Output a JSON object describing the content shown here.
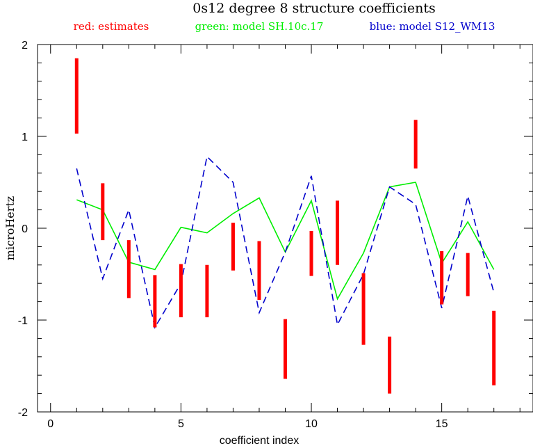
{
  "chart_data": {
    "type": "line",
    "title": "0s12 degree 8 structure coefficients",
    "legend": [
      {
        "label": "red: estimates",
        "color": "#ff0000"
      },
      {
        "label": "green: model SH.10c.17",
        "color": "#00ee00"
      },
      {
        "label": "blue: model S12_WM13",
        "color": "#0000cc"
      }
    ],
    "xlabel": "coefficient index",
    "ylabel": "microHertz",
    "xlim": [
      -0.5,
      18.5
    ],
    "ylim": [
      -2,
      2
    ],
    "x_ticks": [
      0,
      5,
      10,
      15
    ],
    "y_ticks": [
      -2,
      -1,
      0,
      1,
      2
    ],
    "x_tick_labels": [
      "0",
      "5",
      "10",
      "15"
    ],
    "y_tick_labels": [
      "-2",
      "-1",
      "0",
      "1",
      "2"
    ],
    "x_minor_step": 1,
    "y_minor_step": 0.2,
    "grid": false,
    "estimates": {
      "name": "red: estimates",
      "color": "#ff0000",
      "x": [
        1,
        2,
        3,
        4,
        5,
        6,
        7,
        8,
        9,
        10,
        11,
        12,
        13,
        14,
        15,
        16,
        17
      ],
      "low": [
        1.03,
        -0.13,
        -0.76,
        -1.08,
        -0.97,
        -0.97,
        -0.46,
        -0.78,
        -1.64,
        -0.52,
        -0.4,
        -1.27,
        -1.8,
        0.65,
        -0.83,
        -0.74,
        -1.71
      ],
      "high": [
        1.85,
        0.49,
        -0.13,
        -0.51,
        -0.39,
        -0.4,
        0.06,
        -0.14,
        -0.99,
        -0.03,
        0.3,
        -0.49,
        -1.18,
        1.18,
        -0.25,
        -0.27,
        -0.9
      ]
    },
    "series": [
      {
        "name": "green: model SH.10c.17",
        "color": "#00ee00",
        "style": "solid",
        "x": [
          1,
          2,
          3,
          4,
          5,
          6,
          7,
          8,
          9,
          10,
          11,
          12,
          13,
          14,
          15,
          16,
          17
        ],
        "values": [
          0.31,
          0.2,
          -0.37,
          -0.45,
          0.01,
          -0.05,
          0.16,
          0.33,
          -0.26,
          0.3,
          -0.77,
          -0.27,
          0.45,
          0.5,
          -0.38,
          0.07,
          -0.45
        ]
      },
      {
        "name": "blue: model S12_WM13",
        "color": "#0000cc",
        "style": "dashed",
        "x": [
          1,
          2,
          3,
          4,
          5,
          6,
          7,
          8,
          9,
          10,
          11,
          12,
          13,
          14,
          15,
          16,
          17
        ],
        "values": [
          0.65,
          -0.55,
          0.2,
          -1.08,
          -0.6,
          0.78,
          0.5,
          -0.92,
          -0.26,
          0.57,
          -1.05,
          -0.5,
          0.45,
          0.26,
          -0.87,
          0.35,
          -0.7
        ]
      }
    ]
  }
}
